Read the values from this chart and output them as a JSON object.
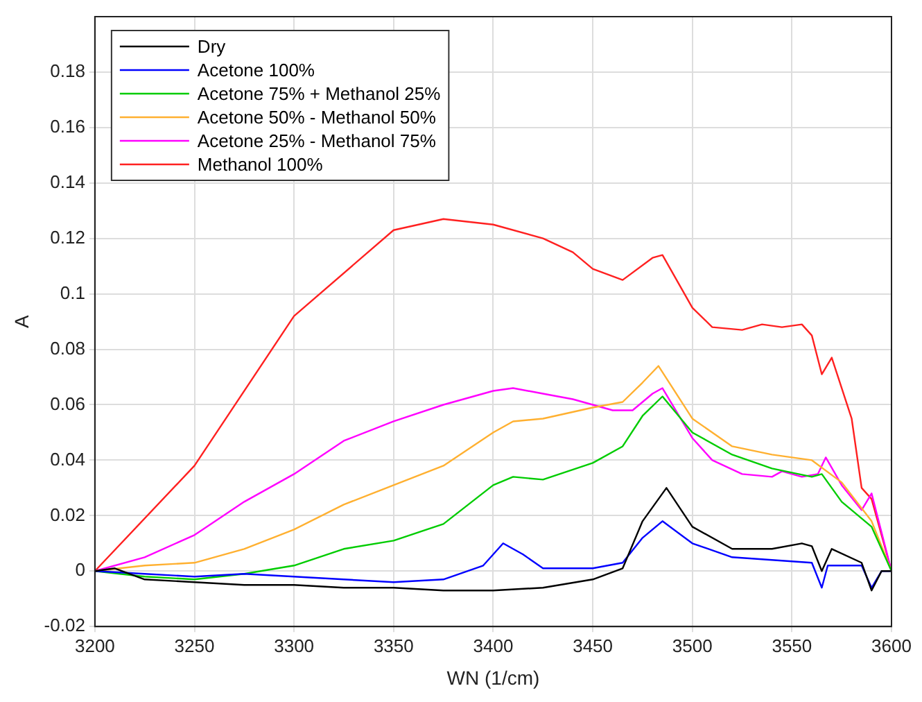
{
  "chart_data": {
    "type": "line",
    "xlabel": "WN (1/cm)",
    "ylabel": "A",
    "xlim": [
      3200,
      3600
    ],
    "xticks": [
      3200,
      3250,
      3300,
      3350,
      3400,
      3450,
      3500,
      3550,
      3600
    ],
    "ylim": [
      -0.02,
      0.2
    ],
    "yticks": [
      -0.02,
      0,
      0.02,
      0.04,
      0.06,
      0.08,
      0.1,
      0.12,
      0.14,
      0.16,
      0.18
    ],
    "grid": true,
    "legend": "top left",
    "marker": "none",
    "line_style": "solid",
    "series": [
      {
        "name": "Dry",
        "color": "#000000",
        "x": [
          3200,
          3210,
          3225,
          3250,
          3275,
          3300,
          3325,
          3350,
          3375,
          3400,
          3425,
          3450,
          3465,
          3475,
          3487,
          3500,
          3520,
          3540,
          3555,
          3560,
          3565,
          3570,
          3585,
          3590,
          3595,
          3600
        ],
        "values": [
          0,
          0.001,
          -0.003,
          -0.004,
          -0.005,
          -0.005,
          -0.006,
          -0.006,
          -0.007,
          -0.007,
          -0.006,
          -0.003,
          0.001,
          0.018,
          0.03,
          0.016,
          0.008,
          0.008,
          0.01,
          0.009,
          0,
          0.008,
          0.003,
          -0.007,
          0,
          0
        ]
      },
      {
        "name": "Acetone 100%",
        "color": "#0000ff",
        "x": [
          3200,
          3225,
          3250,
          3275,
          3300,
          3325,
          3350,
          3375,
          3395,
          3405,
          3415,
          3425,
          3450,
          3465,
          3475,
          3485,
          3500,
          3520,
          3540,
          3560,
          3565,
          3568,
          3585,
          3590,
          3595,
          3600
        ],
        "values": [
          0,
          -0.001,
          -0.002,
          -0.001,
          -0.002,
          -0.003,
          -0.004,
          -0.003,
          0.002,
          0.01,
          0.006,
          0.001,
          0.001,
          0.003,
          0.012,
          0.018,
          0.01,
          0.005,
          0.004,
          0.003,
          -0.006,
          0.002,
          0.002,
          -0.006,
          0,
          0
        ]
      },
      {
        "name": "Acetone 75% + Methanol 25%",
        "color": "#00cc00",
        "x": [
          3200,
          3225,
          3250,
          3275,
          3300,
          3325,
          3350,
          3375,
          3400,
          3410,
          3425,
          3450,
          3465,
          3475,
          3485,
          3500,
          3520,
          3540,
          3560,
          3565,
          3575,
          3590,
          3600
        ],
        "values": [
          0,
          -0.002,
          -0.003,
          -0.001,
          0.002,
          0.008,
          0.011,
          0.017,
          0.031,
          0.034,
          0.033,
          0.039,
          0.045,
          0.056,
          0.063,
          0.05,
          0.042,
          0.037,
          0.034,
          0.035,
          0.025,
          0.016,
          0
        ]
      },
      {
        "name": "Acetone 50% - Methanol 50%",
        "color": "#ffb030",
        "x": [
          3200,
          3225,
          3250,
          3275,
          3300,
          3325,
          3350,
          3375,
          3400,
          3410,
          3425,
          3450,
          3465,
          3475,
          3483,
          3500,
          3520,
          3540,
          3560,
          3575,
          3590,
          3600
        ],
        "values": [
          0,
          0.002,
          0.003,
          0.008,
          0.015,
          0.024,
          0.031,
          0.038,
          0.05,
          0.054,
          0.055,
          0.059,
          0.061,
          0.068,
          0.074,
          0.055,
          0.045,
          0.042,
          0.04,
          0.032,
          0.018,
          0
        ]
      },
      {
        "name": "Acetone 25% - Methanol 75%",
        "color": "#ff00ff",
        "x": [
          3200,
          3225,
          3250,
          3275,
          3300,
          3325,
          3350,
          3375,
          3400,
          3410,
          3425,
          3440,
          3460,
          3470,
          3480,
          3485,
          3500,
          3510,
          3525,
          3540,
          3545,
          3555,
          3563,
          3567,
          3575,
          3585,
          3590,
          3600
        ],
        "values": [
          0,
          0.005,
          0.013,
          0.025,
          0.035,
          0.047,
          0.054,
          0.06,
          0.065,
          0.066,
          0.064,
          0.062,
          0.058,
          0.058,
          0.064,
          0.066,
          0.048,
          0.04,
          0.035,
          0.034,
          0.036,
          0.034,
          0.035,
          0.041,
          0.031,
          0.022,
          0.028,
          0
        ]
      },
      {
        "name": "Methanol 100%",
        "color": "#ff2020",
        "x": [
          3200,
          3250,
          3300,
          3350,
          3375,
          3400,
          3425,
          3440,
          3450,
          3465,
          3480,
          3485,
          3500,
          3510,
          3525,
          3535,
          3545,
          3555,
          3560,
          3565,
          3570,
          3580,
          3585,
          3590,
          3600
        ],
        "values": [
          0,
          0.038,
          0.092,
          0.123,
          0.127,
          0.125,
          0.12,
          0.115,
          0.109,
          0.105,
          0.113,
          0.114,
          0.095,
          0.088,
          0.087,
          0.089,
          0.088,
          0.089,
          0.085,
          0.071,
          0.077,
          0.055,
          0.03,
          0.026,
          0
        ]
      }
    ]
  }
}
